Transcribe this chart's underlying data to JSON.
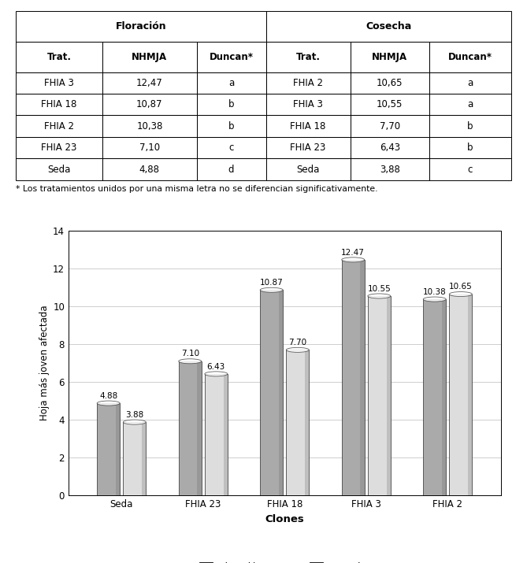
{
  "table_floracion_rows": [
    [
      "FHIA 3",
      "12,47",
      "a"
    ],
    [
      "FHIA 18",
      "10,87",
      "b"
    ],
    [
      "FHIA 2",
      "10,38",
      "b"
    ],
    [
      "FHIA 23",
      "7,10",
      "c"
    ],
    [
      "Seda",
      "4,88",
      "d"
    ]
  ],
  "table_cosecha_rows": [
    [
      "FHIA 2",
      "10,65",
      "a"
    ],
    [
      "FHIA 3",
      "10,55",
      "a"
    ],
    [
      "FHIA 18",
      "7,70",
      "b"
    ],
    [
      "FHIA 23",
      "6,43",
      "b"
    ],
    [
      "Seda",
      "3,88",
      "c"
    ]
  ],
  "footnote": "* Los tratamientos unidos por una misma letra no se diferencian significativamente.",
  "bar_categories": [
    "Seda",
    "FHIA 23",
    "FHIA 18",
    "FHIA 3",
    "FHIA 2"
  ],
  "floracion_values": [
    4.88,
    7.1,
    10.87,
    12.47,
    10.38
  ],
  "cosecha_values": [
    3.88,
    6.43,
    7.7,
    10.55,
    10.65
  ],
  "floracion_labels": [
    "4.88",
    "7.10",
    "10.87",
    "12.47",
    "10.38"
  ],
  "cosecha_labels": [
    "3.88",
    "6.43",
    "7.70",
    "10.55",
    "10.65"
  ],
  "ylabel": "Hoja más joven afectada",
  "xlabel": "Clones",
  "ylim": [
    0,
    14
  ],
  "yticks": [
    0,
    2,
    4,
    6,
    8,
    10,
    12,
    14
  ],
  "legend_floracion": "Floración",
  "legend_cosecha": "Cosecha",
  "color_floracion": "#aaaaaa",
  "color_cosecha": "#dddddd",
  "table_header1": [
    "Floración",
    "Cosecha"
  ],
  "table_header2": [
    "Trat.",
    "NHMJA",
    "Duncan*",
    "Trat.",
    "NHMJA",
    "Duncan*"
  ]
}
